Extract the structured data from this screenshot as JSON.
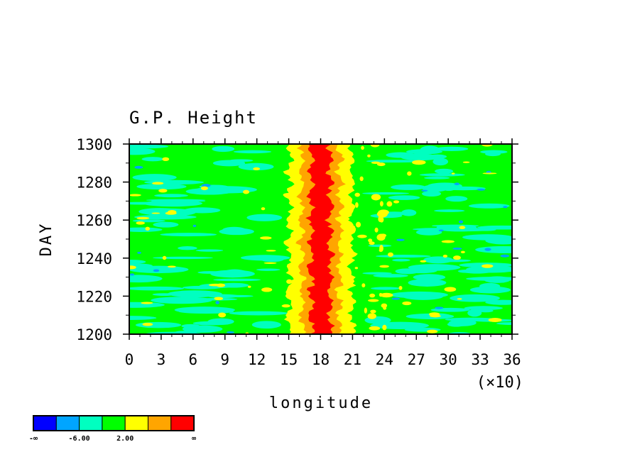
{
  "chart_data": {
    "type": "heatmap",
    "title": "G.P. Height",
    "xlabel": "longitude",
    "ylabel": "DAY",
    "x_multiplier_label": "(×10)",
    "xlim": [
      0,
      36
    ],
    "ylim": [
      1200,
      1300
    ],
    "x_ticks": [
      0,
      3,
      6,
      9,
      12,
      15,
      18,
      21,
      24,
      27,
      30,
      33,
      36
    ],
    "y_ticks": [
      1200,
      1220,
      1240,
      1260,
      1280,
      1300
    ],
    "x_tick_labels": [
      "0",
      "3",
      "6",
      "9",
      "12",
      "15",
      "18",
      "21",
      "24",
      "27",
      "30",
      "33",
      "36"
    ],
    "y_tick_labels": [
      "1200",
      "1220",
      "1240",
      "1260",
      "1280",
      "1300"
    ],
    "colorbar": {
      "colors": [
        "#0000ff",
        "#00a5ff",
        "#00ffc0",
        "#00ff00",
        "#ffff00",
        "#ffa500",
        "#ff0000"
      ],
      "labels": [
        "-∞",
        "-6.00",
        "2.00",
        "∞"
      ]
    },
    "field_structure": {
      "background_level": "green",
      "ridge_center_longitude": 18,
      "ridge_core_halfwidth": 0.9,
      "ridge_orange_halfwidth": 1.8,
      "ridge_yellow_halfwidth": 3.0
    }
  }
}
